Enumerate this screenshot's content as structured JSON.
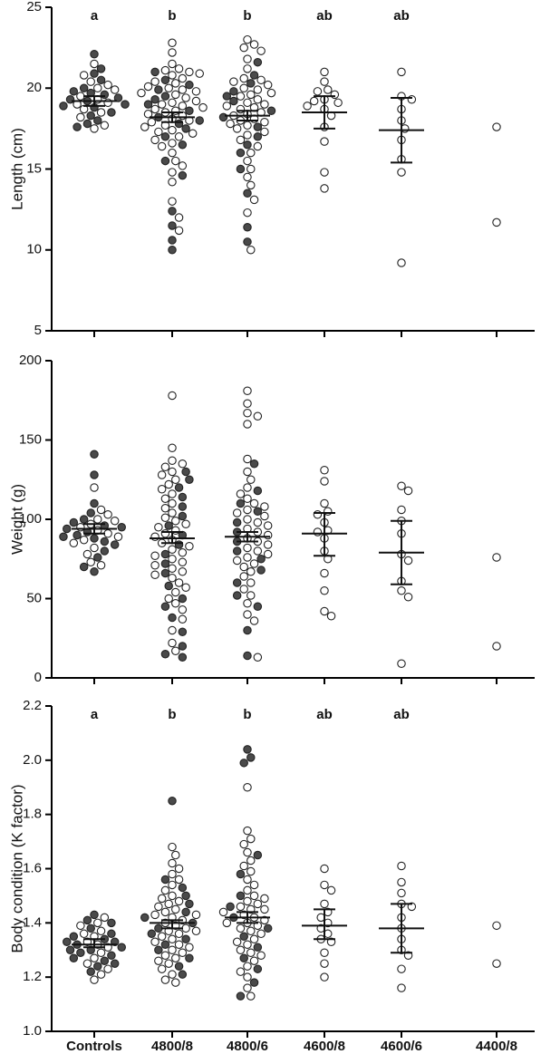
{
  "chart_data": [
    {
      "type": "swarm",
      "y_label": "Length (cm)",
      "ylim": [
        5,
        25
      ],
      "yticks": [
        5,
        10,
        15,
        20,
        25
      ],
      "filled_color": "#4a4a4a",
      "open_color": "#ffffff",
      "groups": [
        {
          "letter": "a",
          "mean": 19.2,
          "ci": [
            18.9,
            19.5
          ],
          "filled": [
            22.1,
            21.2,
            20.9,
            20.5,
            20.0,
            19.8,
            19.6,
            19.4,
            19.2,
            19.0,
            18.8,
            18.5,
            18.3,
            18.0,
            17.8,
            17.6,
            19.7,
            19.3,
            18.9
          ],
          "open": [
            21.5,
            20.8,
            20.2,
            20.0,
            19.9,
            19.5,
            19.3,
            19.1,
            18.7,
            18.5,
            18.2,
            17.7,
            17.5,
            20.4,
            19.0
          ]
        },
        {
          "letter": "b",
          "mean": 18.2,
          "ci": [
            17.9,
            18.5
          ],
          "filled": [
            21.0,
            20.5,
            20.2,
            19.9,
            19.5,
            19.0,
            18.6,
            18.2,
            17.8,
            17.5,
            17.0,
            16.5,
            15.5,
            14.6,
            12.4,
            11.5,
            10.6,
            10.0,
            19.3,
            18.0
          ],
          "open": [
            22.8,
            22.2,
            21.5,
            21.2,
            21.1,
            21.0,
            20.8,
            20.6,
            20.4,
            20.3,
            20.1,
            20.0,
            19.8,
            19.7,
            19.6,
            19.4,
            19.2,
            19.1,
            19.0,
            18.9,
            18.8,
            18.7,
            18.5,
            18.4,
            18.3,
            18.1,
            18.0,
            17.9,
            17.7,
            17.6,
            17.4,
            17.2,
            17.0,
            16.8,
            16.6,
            16.4,
            16.0,
            15.5,
            15.2,
            14.8,
            14.2,
            13.0,
            12.0,
            11.2,
            20.9,
            19.9,
            18.6,
            17.3
          ]
        },
        {
          "letter": "b",
          "mean": 18.3,
          "ci": [
            18.0,
            18.6
          ],
          "filled": [
            21.6,
            20.8,
            20.3,
            19.8,
            19.2,
            18.6,
            18.2,
            17.6,
            17.0,
            16.5,
            16.0,
            15.0,
            13.5,
            11.4,
            10.5,
            19.5
          ],
          "open": [
            23.0,
            22.7,
            22.5,
            22.3,
            21.8,
            21.2,
            20.6,
            20.4,
            20.2,
            20.0,
            19.9,
            19.7,
            19.5,
            19.3,
            19.1,
            19.0,
            18.8,
            18.7,
            18.5,
            18.4,
            18.3,
            18.1,
            18.0,
            17.8,
            17.7,
            17.5,
            17.3,
            17.1,
            16.8,
            16.4,
            16.0,
            15.5,
            15.0,
            14.5,
            14.0,
            13.1,
            12.3,
            10.0,
            20.5,
            19.6,
            18.9,
            17.9
          ]
        },
        {
          "letter": "ab",
          "mean": 18.5,
          "ci": [
            17.5,
            19.5
          ],
          "filled": [],
          "open": [
            21.0,
            20.4,
            19.9,
            19.8,
            19.6,
            19.3,
            19.2,
            19.1,
            18.9,
            18.7,
            18.3,
            17.6,
            16.7,
            14.8,
            13.8
          ]
        },
        {
          "letter": "ab",
          "mean": 17.4,
          "ci": [
            15.4,
            19.4
          ],
          "filled": [],
          "open": [
            21.0,
            19.5,
            19.3,
            18.7,
            18.0,
            17.5,
            16.8,
            15.6,
            14.8,
            9.2
          ]
        },
        {
          "filled": [],
          "open": [
            17.6,
            11.7
          ]
        }
      ]
    },
    {
      "type": "swarm",
      "y_label": "Weight (g)",
      "ylim": [
        0,
        200
      ],
      "yticks": [
        0,
        50,
        100,
        150,
        200
      ],
      "filled_color": "#4a4a4a",
      "open_color": "#ffffff",
      "groups": [
        {
          "mean": 94,
          "ci": [
            91,
            97
          ],
          "filled": [
            141,
            128,
            110,
            104,
            100,
            98,
            96,
            94,
            92,
            90,
            88,
            86,
            84,
            80,
            76,
            70,
            67,
            95,
            89
          ],
          "open": [
            120,
            106,
            103,
            100,
            97,
            95,
            93,
            91,
            89,
            87,
            85,
            82,
            78,
            73,
            71,
            99
          ]
        },
        {
          "mean": 88,
          "ci": [
            85,
            92
          ],
          "filled": [
            130,
            125,
            120,
            114,
            108,
            102,
            96,
            90,
            84,
            78,
            72,
            66,
            58,
            50,
            45,
            38,
            29,
            20,
            15,
            13
          ],
          "open": [
            178,
            145,
            137,
            135,
            133,
            130,
            128,
            125,
            122,
            119,
            116,
            113,
            110,
            107,
            104,
            101,
            99,
            97,
            95,
            93,
            91,
            89,
            87,
            85,
            83,
            81,
            79,
            77,
            75,
            73,
            71,
            69,
            67,
            65,
            63,
            60,
            57,
            54,
            50,
            47,
            43,
            37,
            30,
            22,
            17
          ]
        },
        {
          "mean": 89,
          "ci": [
            86,
            92
          ],
          "filled": [
            135,
            118,
            110,
            105,
            98,
            92,
            86,
            80,
            75,
            68,
            60,
            52,
            45,
            30,
            14
          ],
          "open": [
            181,
            173,
            167,
            165,
            160,
            138,
            130,
            125,
            120,
            116,
            113,
            110,
            108,
            106,
            104,
            102,
            100,
            98,
            96,
            94,
            92,
            90,
            88,
            86,
            84,
            82,
            80,
            78,
            76,
            74,
            72,
            70,
            67,
            64,
            60,
            56,
            52,
            47,
            40,
            36,
            13
          ]
        },
        {
          "mean": 91,
          "ci": [
            77,
            104
          ],
          "filled": [],
          "open": [
            131,
            124,
            110,
            105,
            103,
            98,
            93,
            92,
            88,
            80,
            75,
            66,
            55,
            42,
            39
          ]
        },
        {
          "mean": 79,
          "ci": [
            59,
            99
          ],
          "filled": [],
          "open": [
            121,
            118,
            106,
            99,
            91,
            78,
            74,
            61,
            55,
            51,
            9
          ]
        },
        {
          "filled": [],
          "open": [
            76,
            20
          ]
        }
      ]
    },
    {
      "type": "swarm",
      "y_label": "Body condition (K factor)",
      "ylim": [
        1.0,
        2.2
      ],
      "yticks": [
        {
          "value": 1.0,
          "label": "1.0"
        },
        1.2,
        1.4,
        1.6,
        1.8,
        {
          "value": 2.0,
          "label": "2.0"
        },
        2.2
      ],
      "filled_color": "#4a4a4a",
      "open_color": "#ffffff",
      "categories": [
        "Controls",
        "4800/8",
        "4800/6",
        "4600/8",
        "4600/6",
        "4400/8"
      ],
      "groups": [
        {
          "letter": "a",
          "mean": 1.32,
          "ci": [
            1.31,
            1.34
          ],
          "filled": [
            1.43,
            1.41,
            1.4,
            1.38,
            1.36,
            1.35,
            1.34,
            1.33,
            1.32,
            1.31,
            1.3,
            1.29,
            1.28,
            1.27,
            1.26,
            1.25,
            1.24,
            1.22,
            1.33,
            1.3
          ],
          "open": [
            1.42,
            1.4,
            1.39,
            1.37,
            1.35,
            1.33,
            1.31,
            1.29,
            1.27,
            1.25,
            1.23,
            1.21,
            1.19,
            1.36,
            1.32
          ]
        },
        {
          "letter": "b",
          "mean": 1.4,
          "ci": [
            1.38,
            1.41
          ],
          "filled": [
            1.85,
            1.56,
            1.53,
            1.5,
            1.47,
            1.44,
            1.42,
            1.4,
            1.38,
            1.36,
            1.34,
            1.32,
            1.3,
            1.27,
            1.24,
            1.21
          ],
          "open": [
            1.68,
            1.65,
            1.62,
            1.6,
            1.58,
            1.56,
            1.54,
            1.52,
            1.5,
            1.49,
            1.48,
            1.47,
            1.46,
            1.45,
            1.44,
            1.43,
            1.42,
            1.41,
            1.4,
            1.39,
            1.38,
            1.37,
            1.36,
            1.35,
            1.34,
            1.33,
            1.32,
            1.31,
            1.3,
            1.29,
            1.28,
            1.27,
            1.26,
            1.25,
            1.23,
            1.21,
            1.19,
            1.18,
            1.43,
            1.37
          ]
        },
        {
          "letter": "b",
          "mean": 1.42,
          "ci": [
            1.4,
            1.44
          ],
          "filled": [
            2.04,
            2.01,
            1.99,
            1.65,
            1.58,
            1.5,
            1.46,
            1.42,
            1.38,
            1.35,
            1.31,
            1.27,
            1.23,
            1.18,
            1.13
          ],
          "open": [
            1.9,
            1.74,
            1.71,
            1.69,
            1.66,
            1.63,
            1.61,
            1.59,
            1.56,
            1.54,
            1.52,
            1.5,
            1.49,
            1.48,
            1.47,
            1.46,
            1.45,
            1.44,
            1.43,
            1.42,
            1.41,
            1.4,
            1.39,
            1.38,
            1.37,
            1.36,
            1.34,
            1.33,
            1.32,
            1.3,
            1.29,
            1.28,
            1.26,
            1.24,
            1.22,
            1.2,
            1.16,
            1.13,
            1.45,
            1.4
          ]
        },
        {
          "letter": "ab",
          "mean": 1.39,
          "ci": [
            1.34,
            1.45
          ],
          "filled": [],
          "open": [
            1.6,
            1.54,
            1.52,
            1.47,
            1.44,
            1.42,
            1.4,
            1.38,
            1.36,
            1.34,
            1.33,
            1.29,
            1.25,
            1.2
          ]
        },
        {
          "letter": "ab",
          "mean": 1.38,
          "ci": [
            1.29,
            1.47
          ],
          "filled": [],
          "open": [
            1.61,
            1.55,
            1.51,
            1.47,
            1.46,
            1.42,
            1.38,
            1.34,
            1.3,
            1.28,
            1.23,
            1.16
          ]
        },
        {
          "filled": [],
          "open": [
            1.39,
            1.25
          ]
        }
      ]
    }
  ]
}
